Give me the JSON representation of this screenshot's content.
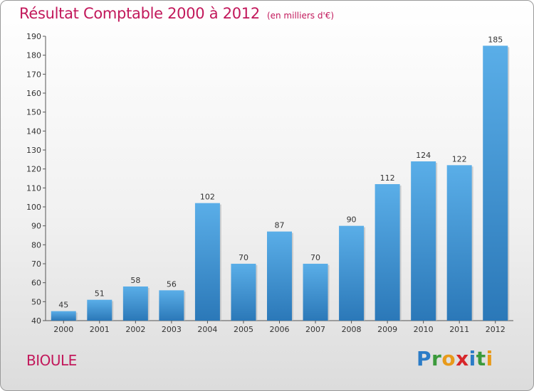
{
  "header": {
    "title": "Résultat Comptable 2000 à 2012",
    "subtitle": "(en milliers d'€)"
  },
  "footer": {
    "commune": "BIOULE",
    "brand": "Proxiti",
    "brand_letters": [
      {
        "ch": "P",
        "color": "#2b7cc7"
      },
      {
        "ch": "r",
        "color": "#3b9a3b"
      },
      {
        "ch": "o",
        "color": "#e89a1a"
      },
      {
        "ch": "x",
        "color": "#d7262a"
      },
      {
        "ch": "i",
        "color": "#2b7cc7"
      },
      {
        "ch": "t",
        "color": "#3b9a3b"
      },
      {
        "ch": "i",
        "color": "#e89a1a"
      }
    ]
  },
  "chart_data": {
    "type": "bar",
    "title": "Résultat Comptable 2000 à 2012",
    "subtitle": "(en milliers d'€)",
    "xlabel": "",
    "ylabel": "",
    "categories": [
      "2000",
      "2001",
      "2002",
      "2003",
      "2004",
      "2005",
      "2006",
      "2007",
      "2008",
      "2009",
      "2010",
      "2011",
      "2012"
    ],
    "values": [
      45,
      51,
      58,
      56,
      102,
      70,
      87,
      70,
      90,
      112,
      124,
      122,
      185
    ],
    "ylim": [
      40,
      190
    ],
    "yticks": [
      40,
      50,
      60,
      70,
      80,
      90,
      100,
      110,
      120,
      130,
      140,
      150,
      160,
      170,
      180,
      190
    ],
    "grid": false,
    "bar_color_top": "#5aaee8",
    "bar_color_bottom": "#2b78b8"
  }
}
